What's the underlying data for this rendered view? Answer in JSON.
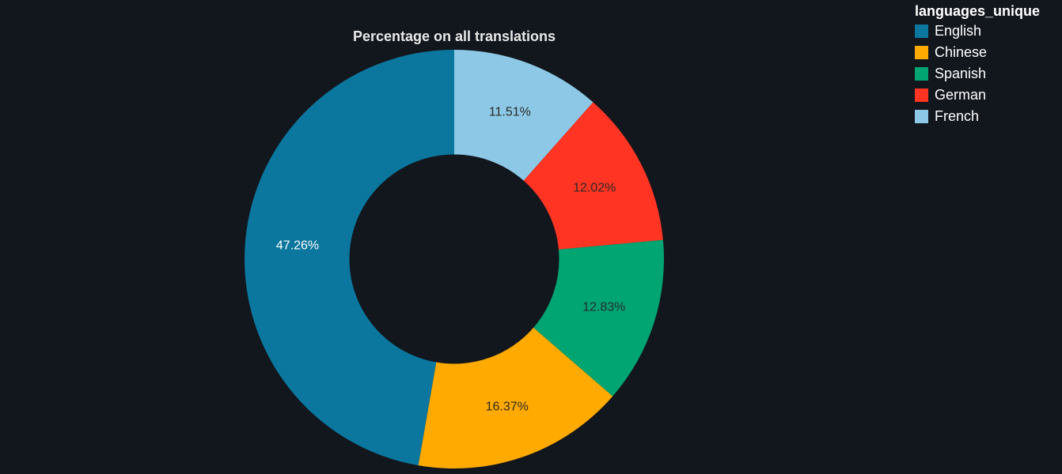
{
  "chart_data": {
    "type": "pie",
    "hole": 0.5,
    "title": "Percentage on all translations",
    "legend_title": "languages_unique",
    "legend_position": "top-right",
    "categories": [
      "English",
      "Chinese",
      "Spanish",
      "German",
      "French"
    ],
    "values": [
      47.26,
      16.37,
      12.83,
      12.02,
      11.51
    ],
    "labels": [
      "47.26%",
      "16.37%",
      "12.83%",
      "12.02%",
      "11.51%"
    ],
    "colors": [
      "#0b779e",
      "#ffaa00",
      "#00a572",
      "#ff3422",
      "#8dc9e6"
    ],
    "label_colors": [
      "#ffffff",
      "#2a2a2a",
      "#2a2a2a",
      "#2a2a2a",
      "#2a2a2a"
    ],
    "background": "#12161d"
  }
}
